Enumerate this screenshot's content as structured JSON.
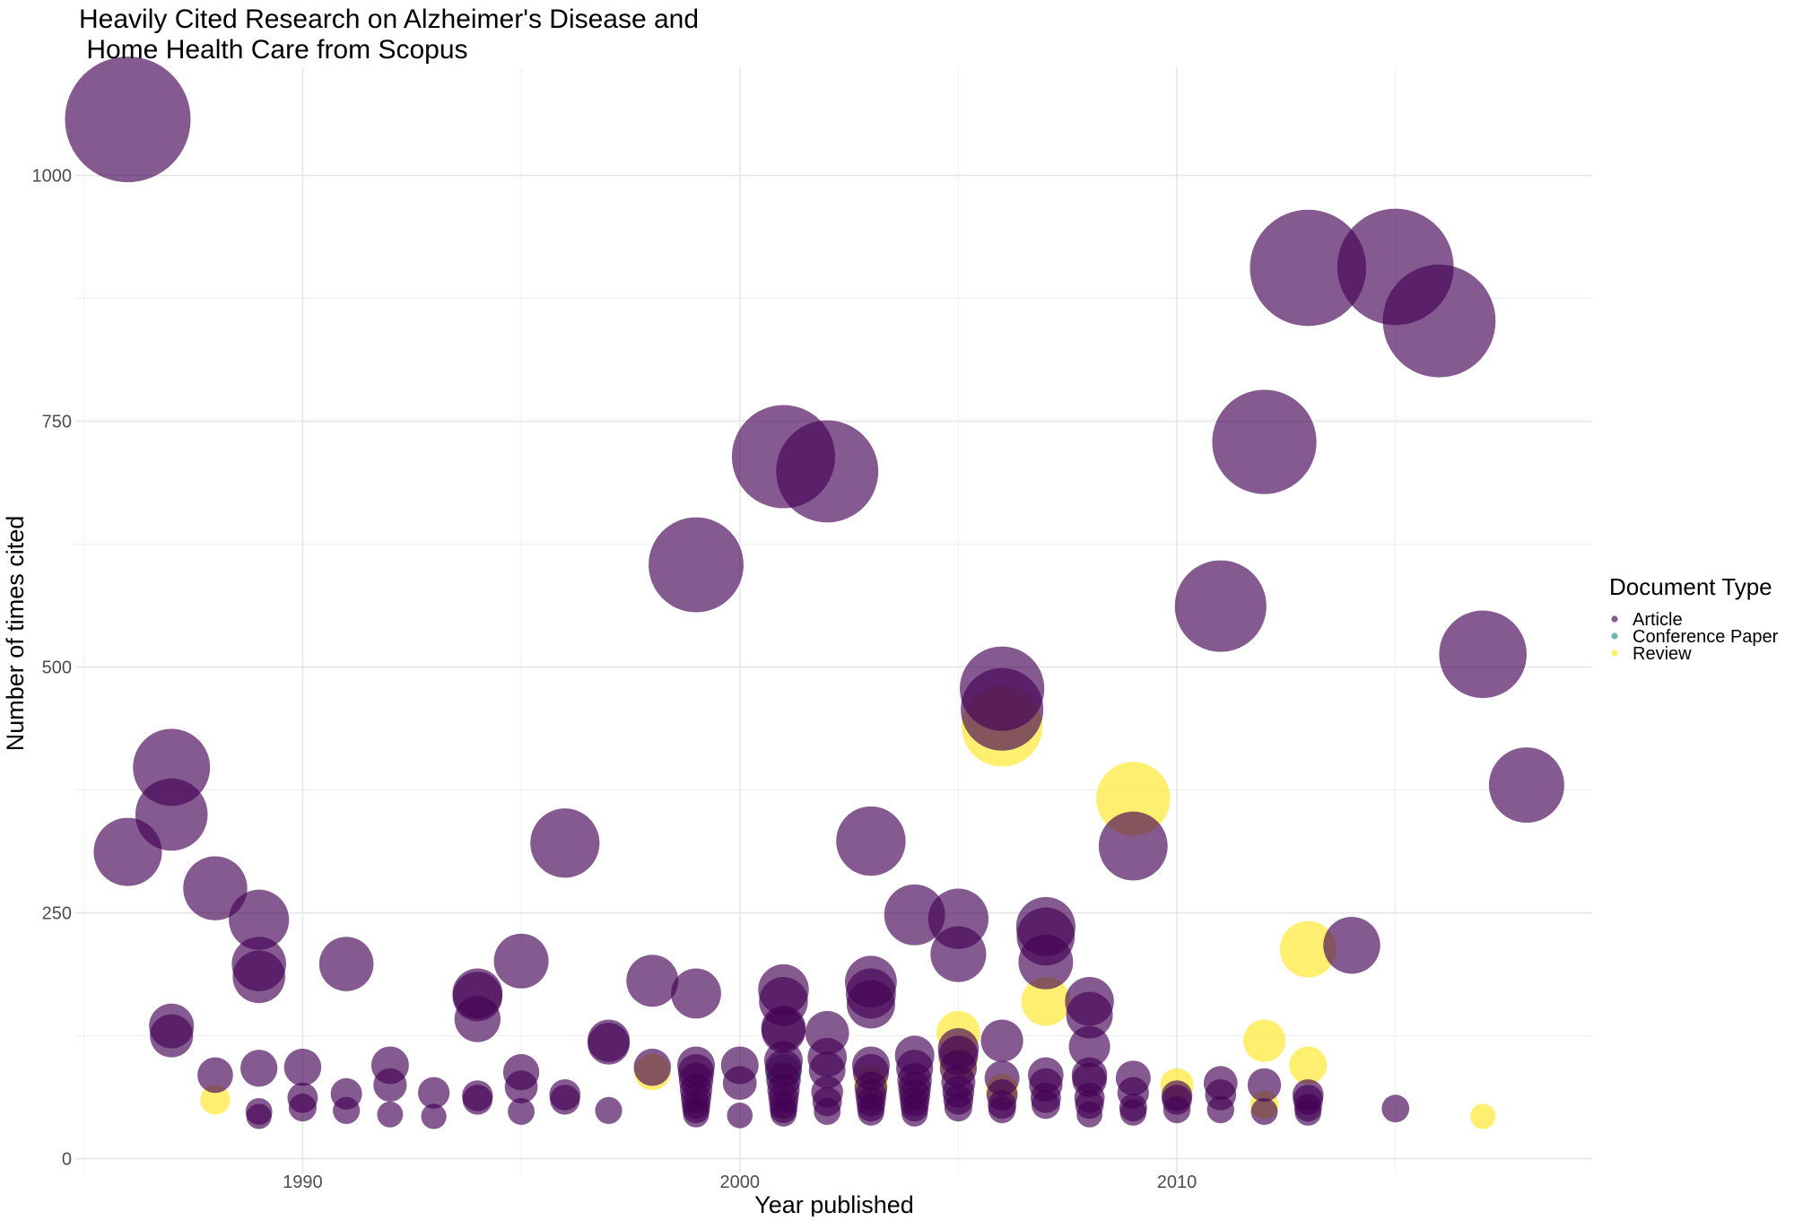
{
  "chart_data": {
    "type": "scatter",
    "title_line1": "Heavily Cited Research on Alzheimer's Disease and",
    "title_line2": " Home Health Care from Scopus",
    "xlabel": "Year published",
    "ylabel": "Number of times cited",
    "xlim": [
      1984.8,
      2019.5
    ],
    "ylim": [
      -15,
      1110
    ],
    "x_ticks": [
      1990,
      2000,
      2010
    ],
    "x_tick_labels": [
      "1990",
      "2000",
      "2010"
    ],
    "y_ticks": [
      0,
      250,
      500,
      750,
      1000
    ],
    "y_tick_labels": [
      "0",
      "250",
      "500",
      "750",
      "1000"
    ],
    "size_encodes": "Number of times cited",
    "grid": true,
    "legend": {
      "title": "Document Type",
      "placement": "right",
      "entries": [
        {
          "label": "Article",
          "color": "#440154"
        },
        {
          "label": "Conference Paper",
          "color": "#21908C"
        },
        {
          "label": "Review",
          "color": "#FDE725"
        }
      ]
    },
    "point_opacity": 0.65,
    "points": [
      {
        "x": 1986,
        "y": 1057,
        "type": "Article"
      },
      {
        "x": 1986,
        "y": 312,
        "type": "Article"
      },
      {
        "x": 1987,
        "y": 398,
        "type": "Article"
      },
      {
        "x": 1987,
        "y": 350,
        "type": "Article"
      },
      {
        "x": 1987,
        "y": 135,
        "type": "Article"
      },
      {
        "x": 1987,
        "y": 125,
        "type": "Article"
      },
      {
        "x": 1988,
        "y": 275,
        "type": "Article"
      },
      {
        "x": 1988,
        "y": 85,
        "type": "Article"
      },
      {
        "x": 1988,
        "y": 60,
        "type": "Review"
      },
      {
        "x": 1989,
        "y": 243,
        "type": "Article"
      },
      {
        "x": 1989,
        "y": 198,
        "type": "Article"
      },
      {
        "x": 1989,
        "y": 185,
        "type": "Article"
      },
      {
        "x": 1989,
        "y": 92,
        "type": "Article"
      },
      {
        "x": 1989,
        "y": 48,
        "type": "Article"
      },
      {
        "x": 1989,
        "y": 43,
        "type": "Article"
      },
      {
        "x": 1990,
        "y": 93,
        "type": "Article"
      },
      {
        "x": 1990,
        "y": 62,
        "type": "Article"
      },
      {
        "x": 1990,
        "y": 52,
        "type": "Article"
      },
      {
        "x": 1991,
        "y": 198,
        "type": "Article"
      },
      {
        "x": 1991,
        "y": 66,
        "type": "Article"
      },
      {
        "x": 1991,
        "y": 49,
        "type": "Article"
      },
      {
        "x": 1992,
        "y": 95,
        "type": "Article"
      },
      {
        "x": 1992,
        "y": 75,
        "type": "Article"
      },
      {
        "x": 1992,
        "y": 45,
        "type": "Article"
      },
      {
        "x": 1993,
        "y": 67,
        "type": "Article"
      },
      {
        "x": 1993,
        "y": 43,
        "type": "Article"
      },
      {
        "x": 1994,
        "y": 168,
        "type": "Article"
      },
      {
        "x": 1994,
        "y": 165,
        "type": "Article"
      },
      {
        "x": 1994,
        "y": 142,
        "type": "Article"
      },
      {
        "x": 1994,
        "y": 64,
        "type": "Article"
      },
      {
        "x": 1994,
        "y": 60,
        "type": "Article"
      },
      {
        "x": 1995,
        "y": 201,
        "type": "Article"
      },
      {
        "x": 1995,
        "y": 88,
        "type": "Article"
      },
      {
        "x": 1995,
        "y": 73,
        "type": "Article"
      },
      {
        "x": 1995,
        "y": 48,
        "type": "Article"
      },
      {
        "x": 1996,
        "y": 321,
        "type": "Article"
      },
      {
        "x": 1996,
        "y": 65,
        "type": "Article"
      },
      {
        "x": 1996,
        "y": 60,
        "type": "Article"
      },
      {
        "x": 1997,
        "y": 120,
        "type": "Article"
      },
      {
        "x": 1997,
        "y": 117,
        "type": "Article"
      },
      {
        "x": 1997,
        "y": 49,
        "type": "Article"
      },
      {
        "x": 1998,
        "y": 181,
        "type": "Article"
      },
      {
        "x": 1998,
        "y": 93,
        "type": "Article"
      },
      {
        "x": 1998,
        "y": 88,
        "type": "Review"
      },
      {
        "x": 1999,
        "y": 604,
        "type": "Article"
      },
      {
        "x": 1999,
        "y": 168,
        "type": "Article"
      },
      {
        "x": 1999,
        "y": 95,
        "type": "Article"
      },
      {
        "x": 1999,
        "y": 88,
        "type": "Article"
      },
      {
        "x": 1999,
        "y": 80,
        "type": "Article"
      },
      {
        "x": 1999,
        "y": 70,
        "type": "Article"
      },
      {
        "x": 1999,
        "y": 62,
        "type": "Article"
      },
      {
        "x": 1999,
        "y": 55,
        "type": "Article"
      },
      {
        "x": 1999,
        "y": 50,
        "type": "Article"
      },
      {
        "x": 1999,
        "y": 45,
        "type": "Article"
      },
      {
        "x": 2000,
        "y": 95,
        "type": "Article"
      },
      {
        "x": 2000,
        "y": 77,
        "type": "Article"
      },
      {
        "x": 2000,
        "y": 44,
        "type": "Article"
      },
      {
        "x": 2001,
        "y": 714,
        "type": "Article"
      },
      {
        "x": 2001,
        "y": 172,
        "type": "Article"
      },
      {
        "x": 2001,
        "y": 160,
        "type": "Article"
      },
      {
        "x": 2001,
        "y": 133,
        "type": "Article"
      },
      {
        "x": 2001,
        "y": 130,
        "type": "Article"
      },
      {
        "x": 2001,
        "y": 100,
        "type": "Article"
      },
      {
        "x": 2001,
        "y": 92,
        "type": "Article"
      },
      {
        "x": 2001,
        "y": 88,
        "type": "Conference Paper"
      },
      {
        "x": 2001,
        "y": 80,
        "type": "Article"
      },
      {
        "x": 2001,
        "y": 70,
        "type": "Article"
      },
      {
        "x": 2001,
        "y": 62,
        "type": "Article"
      },
      {
        "x": 2001,
        "y": 55,
        "type": "Article"
      },
      {
        "x": 2001,
        "y": 50,
        "type": "Article"
      },
      {
        "x": 2001,
        "y": 46,
        "type": "Article"
      },
      {
        "x": 2002,
        "y": 699,
        "type": "Article"
      },
      {
        "x": 2002,
        "y": 128,
        "type": "Article"
      },
      {
        "x": 2002,
        "y": 103,
        "type": "Article"
      },
      {
        "x": 2002,
        "y": 90,
        "type": "Article"
      },
      {
        "x": 2002,
        "y": 68,
        "type": "Article"
      },
      {
        "x": 2002,
        "y": 58,
        "type": "Article"
      },
      {
        "x": 2002,
        "y": 48,
        "type": "Article"
      },
      {
        "x": 2003,
        "y": 323,
        "type": "Article"
      },
      {
        "x": 2003,
        "y": 180,
        "type": "Article"
      },
      {
        "x": 2003,
        "y": 168,
        "type": "Article"
      },
      {
        "x": 2003,
        "y": 157,
        "type": "Article"
      },
      {
        "x": 2003,
        "y": 95,
        "type": "Article"
      },
      {
        "x": 2003,
        "y": 88,
        "type": "Article"
      },
      {
        "x": 2003,
        "y": 78,
        "type": "Review"
      },
      {
        "x": 2003,
        "y": 72,
        "type": "Article"
      },
      {
        "x": 2003,
        "y": 65,
        "type": "Article"
      },
      {
        "x": 2003,
        "y": 58,
        "type": "Article"
      },
      {
        "x": 2003,
        "y": 52,
        "type": "Article"
      },
      {
        "x": 2003,
        "y": 47,
        "type": "Article"
      },
      {
        "x": 2004,
        "y": 248,
        "type": "Article"
      },
      {
        "x": 2004,
        "y": 105,
        "type": "Article"
      },
      {
        "x": 2004,
        "y": 92,
        "type": "Article"
      },
      {
        "x": 2004,
        "y": 80,
        "type": "Article"
      },
      {
        "x": 2004,
        "y": 72,
        "type": "Article"
      },
      {
        "x": 2004,
        "y": 65,
        "type": "Article"
      },
      {
        "x": 2004,
        "y": 58,
        "type": "Article"
      },
      {
        "x": 2004,
        "y": 52,
        "type": "Article"
      },
      {
        "x": 2004,
        "y": 46,
        "type": "Article"
      },
      {
        "x": 2005,
        "y": 244,
        "type": "Article"
      },
      {
        "x": 2005,
        "y": 208,
        "type": "Article"
      },
      {
        "x": 2005,
        "y": 128,
        "type": "Review"
      },
      {
        "x": 2005,
        "y": 112,
        "type": "Article"
      },
      {
        "x": 2005,
        "y": 105,
        "type": "Article"
      },
      {
        "x": 2005,
        "y": 98,
        "type": "Review"
      },
      {
        "x": 2005,
        "y": 92,
        "type": "Article"
      },
      {
        "x": 2005,
        "y": 78,
        "type": "Article"
      },
      {
        "x": 2005,
        "y": 68,
        "type": "Article"
      },
      {
        "x": 2005,
        "y": 60,
        "type": "Article"
      },
      {
        "x": 2005,
        "y": 52,
        "type": "Article"
      },
      {
        "x": 2006,
        "y": 478,
        "type": "Article"
      },
      {
        "x": 2006,
        "y": 457,
        "type": "Article"
      },
      {
        "x": 2006,
        "y": 440,
        "type": "Review"
      },
      {
        "x": 2006,
        "y": 120,
        "type": "Article"
      },
      {
        "x": 2006,
        "y": 82,
        "type": "Article"
      },
      {
        "x": 2006,
        "y": 70,
        "type": "Review"
      },
      {
        "x": 2006,
        "y": 65,
        "type": "Article"
      },
      {
        "x": 2006,
        "y": 55,
        "type": "Article"
      },
      {
        "x": 2006,
        "y": 50,
        "type": "Article"
      },
      {
        "x": 2007,
        "y": 236,
        "type": "Article"
      },
      {
        "x": 2007,
        "y": 226,
        "type": "Article"
      },
      {
        "x": 2007,
        "y": 200,
        "type": "Article"
      },
      {
        "x": 2007,
        "y": 160,
        "type": "Review"
      },
      {
        "x": 2007,
        "y": 85,
        "type": "Article"
      },
      {
        "x": 2007,
        "y": 75,
        "type": "Article"
      },
      {
        "x": 2007,
        "y": 62,
        "type": "Article"
      },
      {
        "x": 2007,
        "y": 55,
        "type": "Article"
      },
      {
        "x": 2008,
        "y": 160,
        "type": "Article"
      },
      {
        "x": 2008,
        "y": 146,
        "type": "Article"
      },
      {
        "x": 2008,
        "y": 114,
        "type": "Article"
      },
      {
        "x": 2008,
        "y": 85,
        "type": "Article"
      },
      {
        "x": 2008,
        "y": 80,
        "type": "Article"
      },
      {
        "x": 2008,
        "y": 62,
        "type": "Article"
      },
      {
        "x": 2008,
        "y": 55,
        "type": "Article"
      },
      {
        "x": 2008,
        "y": 45,
        "type": "Article"
      },
      {
        "x": 2009,
        "y": 366,
        "type": "Review"
      },
      {
        "x": 2009,
        "y": 318,
        "type": "Article"
      },
      {
        "x": 2009,
        "y": 82,
        "type": "Article"
      },
      {
        "x": 2009,
        "y": 67,
        "type": "Article"
      },
      {
        "x": 2009,
        "y": 52,
        "type": "Article"
      },
      {
        "x": 2009,
        "y": 47,
        "type": "Article"
      },
      {
        "x": 2010,
        "y": 75,
        "type": "Review"
      },
      {
        "x": 2010,
        "y": 64,
        "type": "Article"
      },
      {
        "x": 2010,
        "y": 60,
        "type": "Article"
      },
      {
        "x": 2010,
        "y": 50,
        "type": "Article"
      },
      {
        "x": 2011,
        "y": 562,
        "type": "Article"
      },
      {
        "x": 2011,
        "y": 77,
        "type": "Article"
      },
      {
        "x": 2011,
        "y": 65,
        "type": "Article"
      },
      {
        "x": 2011,
        "y": 50,
        "type": "Article"
      },
      {
        "x": 2012,
        "y": 729,
        "type": "Article"
      },
      {
        "x": 2012,
        "y": 120,
        "type": "Review"
      },
      {
        "x": 2012,
        "y": 75,
        "type": "Article"
      },
      {
        "x": 2012,
        "y": 55,
        "type": "Review"
      },
      {
        "x": 2012,
        "y": 48,
        "type": "Article"
      },
      {
        "x": 2013,
        "y": 906,
        "type": "Article"
      },
      {
        "x": 2013,
        "y": 213,
        "type": "Review"
      },
      {
        "x": 2013,
        "y": 95,
        "type": "Review"
      },
      {
        "x": 2013,
        "y": 65,
        "type": "Article"
      },
      {
        "x": 2013,
        "y": 60,
        "type": "Article"
      },
      {
        "x": 2013,
        "y": 52,
        "type": "Article"
      },
      {
        "x": 2013,
        "y": 47,
        "type": "Article"
      },
      {
        "x": 2014,
        "y": 217,
        "type": "Article"
      },
      {
        "x": 2015,
        "y": 907,
        "type": "Article"
      },
      {
        "x": 2015,
        "y": 51,
        "type": "Article"
      },
      {
        "x": 2016,
        "y": 852,
        "type": "Article"
      },
      {
        "x": 2017,
        "y": 513,
        "type": "Article"
      },
      {
        "x": 2017,
        "y": 43,
        "type": "Review"
      },
      {
        "x": 2018,
        "y": 380,
        "type": "Article"
      }
    ]
  }
}
